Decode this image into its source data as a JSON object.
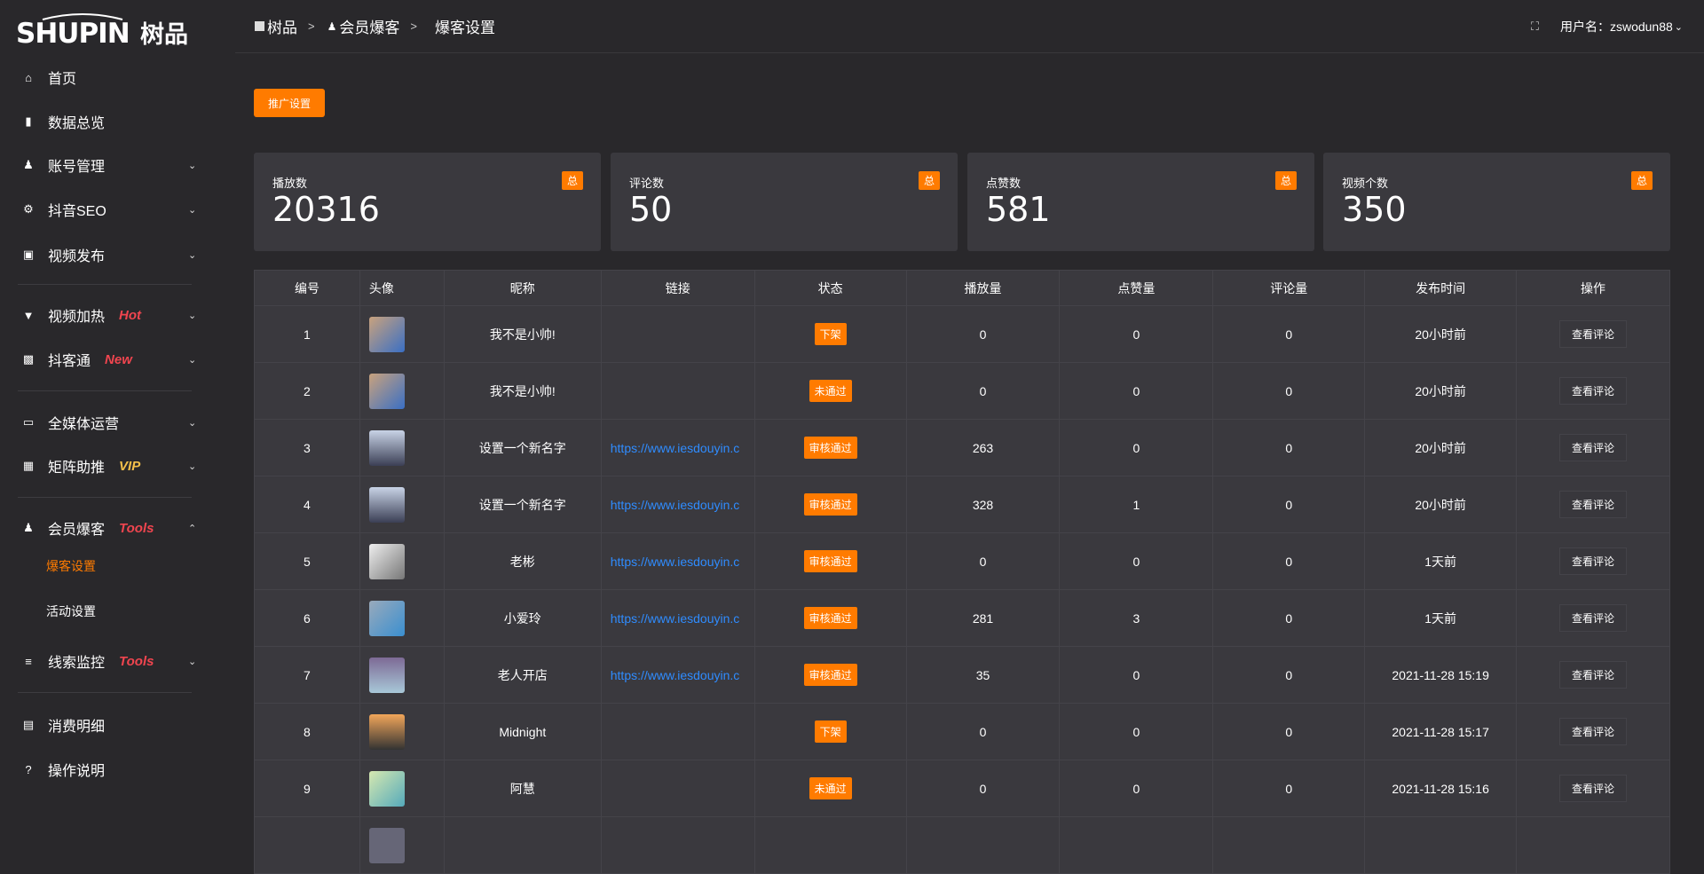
{
  "brand": {
    "logo_text": "SHUPIN",
    "logo_cn": "树品"
  },
  "breadcrumb": [
    "树品",
    "会员爆客",
    "爆客设置"
  ],
  "header": {
    "user_label": "用户名：zswodun88"
  },
  "sidebar": {
    "items": [
      {
        "label": "首页",
        "icon": "home-icon"
      },
      {
        "label": "数据总览",
        "icon": "bar-chart-icon"
      },
      {
        "label": "账号管理",
        "icon": "user-icon"
      },
      {
        "label": "抖音SEO",
        "icon": "gear-icon"
      },
      {
        "label": "视频发布",
        "icon": "camera-icon"
      },
      {
        "label": "视频加热",
        "icon": "sign-icon",
        "tag": "Hot"
      },
      {
        "label": "抖客通",
        "icon": "chat-icon",
        "tag": "New"
      },
      {
        "label": "全媒体运营",
        "icon": "monitor-icon"
      },
      {
        "label": "矩阵助推",
        "icon": "grid-icon",
        "tag": "VIP"
      },
      {
        "label": "会员爆客",
        "icon": "user-icon",
        "tag": "Tools"
      },
      {
        "label": "线索监控",
        "icon": "sliders-icon",
        "tag": "Tools"
      },
      {
        "label": "消费明细",
        "icon": "wallet-icon"
      },
      {
        "label": "操作说明",
        "icon": "help-icon"
      }
    ],
    "subitems": [
      "爆客设置",
      "活动设置"
    ]
  },
  "colors": {
    "accent": "#ff7b00",
    "tag_red": "#f0454f",
    "tag_vip": "#f5c04a",
    "link": "#2f8cff"
  },
  "toolbar": {
    "promo_label": "推广设置"
  },
  "stats": [
    {
      "label": "播放数",
      "value": "20316",
      "badge": "总"
    },
    {
      "label": "评论数",
      "value": "50",
      "badge": "总"
    },
    {
      "label": "点赞数",
      "value": "581",
      "badge": "总"
    },
    {
      "label": "视频个数",
      "value": "350",
      "badge": "总"
    }
  ],
  "table": {
    "columns": [
      "编号",
      "头像",
      "昵称",
      "链接",
      "状态",
      "播放量",
      "点赞量",
      "评论量",
      "发布时间",
      "操作"
    ],
    "action_label": "查看评论",
    "rows": [
      {
        "id": "1",
        "name": "我不是小帅!",
        "link": "",
        "status": "下架",
        "plays": "0",
        "likes": "0",
        "comments": "0",
        "time": "20小时前"
      },
      {
        "id": "2",
        "name": "我不是小帅!",
        "link": "",
        "status": "未通过",
        "plays": "0",
        "likes": "0",
        "comments": "0",
        "time": "20小时前"
      },
      {
        "id": "3",
        "name": "设置一个新名字",
        "link": "https://www.iesdouyin.c",
        "status": "审核通过",
        "plays": "263",
        "likes": "0",
        "comments": "0",
        "time": "20小时前"
      },
      {
        "id": "4",
        "name": "设置一个新名字",
        "link": "https://www.iesdouyin.c",
        "status": "审核通过",
        "plays": "328",
        "likes": "1",
        "comments": "0",
        "time": "20小时前"
      },
      {
        "id": "5",
        "name": "老彬",
        "link": "https://www.iesdouyin.c",
        "status": "审核通过",
        "plays": "0",
        "likes": "0",
        "comments": "0",
        "time": "1天前"
      },
      {
        "id": "6",
        "name": "小爱玲",
        "link": "https://www.iesdouyin.c",
        "status": "审核通过",
        "plays": "281",
        "likes": "3",
        "comments": "0",
        "time": "1天前"
      },
      {
        "id": "7",
        "name": "老人开店",
        "link": "https://www.iesdouyin.c",
        "status": "审核通过",
        "plays": "35",
        "likes": "0",
        "comments": "0",
        "time": "2021-11-28 15:19"
      },
      {
        "id": "8",
        "name": "Midnight",
        "link": "",
        "status": "下架",
        "plays": "0",
        "likes": "0",
        "comments": "0",
        "time": "2021-11-28 15:17"
      },
      {
        "id": "9",
        "name": "阿慧",
        "link": "",
        "status": "未通过",
        "plays": "0",
        "likes": "0",
        "comments": "0",
        "time": "2021-11-28 15:16"
      }
    ]
  }
}
